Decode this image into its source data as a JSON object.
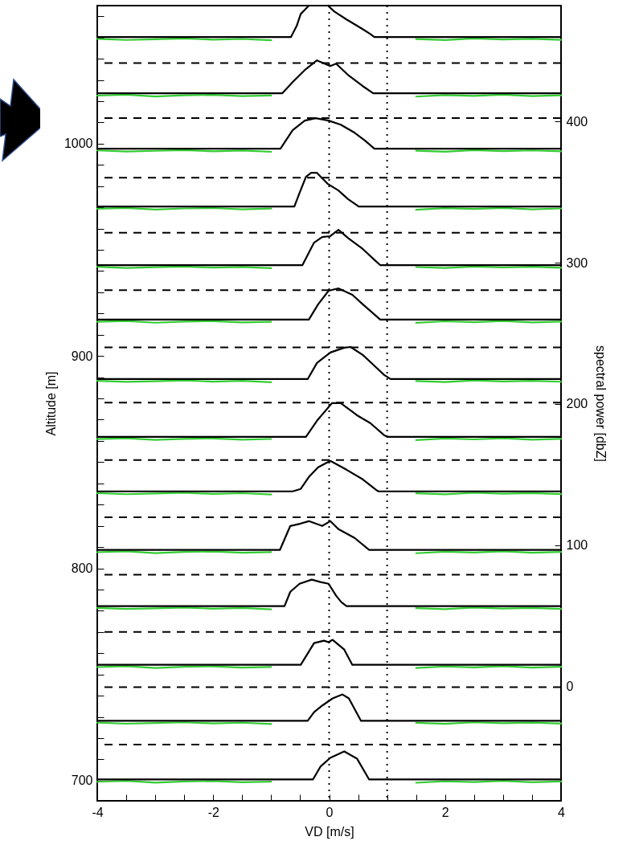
{
  "chart_data": {
    "type": "line",
    "xlabel": "VD [m/s]",
    "ylabel": "Altitude [m]",
    "y2label": "spectral power [dbZ]",
    "xlim": [
      -4,
      4
    ],
    "xticks": [
      -4,
      {
        "value": -3.5,
        "label": null
      },
      {
        "value": -3,
        "label": null
      },
      {
        "value": -2.5,
        "label": null
      },
      -2,
      {
        "value": -1.5,
        "label": null
      },
      {
        "value": -1,
        "label": null
      },
      {
        "value": -0.5,
        "label": null
      },
      0,
      {
        "value": 0.5,
        "label": null
      },
      {
        "value": 1,
        "label": null
      },
      {
        "value": 1.5,
        "label": null
      },
      2,
      {
        "value": 2.5,
        "label": null
      },
      {
        "value": 3,
        "label": null
      },
      {
        "value": 3.5,
        "label": null
      },
      4
    ],
    "ylim": [
      690.5,
      1065
    ],
    "yticks": [
      700,
      {
        "value": 710,
        "label": null
      },
      {
        "value": 720,
        "label": null
      },
      {
        "value": 730,
        "label": null
      },
      {
        "value": 740,
        "label": null
      },
      {
        "value": 750,
        "label": null
      },
      {
        "value": 760,
        "label": null
      },
      {
        "value": 770,
        "label": null
      },
      {
        "value": 780,
        "label": null
      },
      {
        "value": 790,
        "label": null
      },
      800,
      {
        "value": 810,
        "label": null
      },
      {
        "value": 820,
        "label": null
      },
      {
        "value": 830,
        "label": null
      },
      {
        "value": 840,
        "label": null
      },
      {
        "value": 850,
        "label": null
      },
      {
        "value": 860,
        "label": null
      },
      {
        "value": 870,
        "label": null
      },
      {
        "value": 880,
        "label": null
      },
      {
        "value": 890,
        "label": null
      },
      900,
      {
        "value": 910,
        "label": null
      },
      {
        "value": 920,
        "label": null
      },
      {
        "value": 930,
        "label": null
      },
      {
        "value": 940,
        "label": null
      },
      {
        "value": 950,
        "label": null
      },
      {
        "value": 960,
        "label": null
      },
      {
        "value": 970,
        "label": null
      },
      {
        "value": 980,
        "label": null
      },
      {
        "value": 990,
        "label": null
      },
      1000,
      {
        "value": 1010,
        "label": null
      },
      {
        "value": 1020,
        "label": null
      },
      {
        "value": 1030,
        "label": null
      },
      {
        "value": 1040,
        "label": null
      },
      {
        "value": 1050,
        "label": null
      },
      {
        "value": 1060,
        "label": null
      }
    ],
    "y2lim": [
      -81,
      482
    ],
    "y2ticks": [
      0,
      100,
      200,
      300,
      400
    ],
    "series": [
      {
        "color": "#33cc33",
        "axis": "y2",
        "x": [
          -4,
          -3.5,
          -3,
          -2.5,
          -2,
          -1.5,
          -1,
          0,
          1.5,
          2,
          2.5,
          3,
          3.5,
          4
        ],
        "values": [
          458.5,
          457.7,
          458.2,
          458.7,
          457.9,
          458.4,
          457.5,
          null,
          458.3,
          457.6,
          458.7,
          458,
          458.5,
          457.8
        ]
      },
      {
        "color": "#33cc33",
        "axis": "y2",
        "x": [
          -4,
          -3.5,
          -3,
          -2.5,
          -2,
          -1.5,
          -1,
          0,
          1.5,
          2,
          2.5,
          3,
          3.5,
          4
        ],
        "values": [
          418.3,
          418.9,
          417.7,
          418.5,
          418.8,
          417.9,
          418.4,
          null,
          417.6,
          418.7,
          418.1,
          418.9,
          417.9,
          418.5
        ]
      },
      {
        "color": "#33cc33",
        "axis": "y2",
        "x": [
          -4,
          -3.5,
          -3,
          -2.5,
          -2,
          -1.5,
          -1,
          0,
          1.5,
          2,
          2.5,
          3,
          3.5,
          4
        ],
        "values": [
          379.5,
          378.7,
          379.2,
          379.7,
          378.9,
          379.4,
          378.5,
          null,
          379.3,
          378.6,
          379.7,
          379,
          379.5,
          378.8
        ]
      },
      {
        "color": "#33cc33",
        "axis": "y2",
        "x": [
          -4,
          -3.5,
          -3,
          -2.5,
          -2,
          -1.5,
          -1,
          0,
          1.5,
          2,
          2.5,
          3,
          3.5,
          4
        ],
        "values": [
          338.2,
          338.8,
          337.6,
          338.4,
          338.7,
          337.8,
          338.3,
          null,
          337.5,
          338.6,
          338,
          338.8,
          337.8,
          338.4
        ]
      },
      {
        "color": "#33cc33",
        "axis": "y2",
        "x": [
          -4,
          -3.5,
          -3,
          -2.5,
          -2,
          -1.5,
          -1,
          0,
          1.5,
          2,
          2.5,
          3,
          3.5,
          4
        ],
        "values": [
          297.1,
          296.3,
          296.8,
          297.3,
          296.5,
          297,
          296.1,
          null,
          296.9,
          296.2,
          297.3,
          296.6,
          297.1,
          296.4
        ]
      },
      {
        "color": "#33cc33",
        "axis": "y2",
        "x": [
          -4,
          -3.5,
          -3,
          -2.5,
          -2,
          -1.5,
          -1,
          0,
          1.5,
          2,
          2.5,
          3,
          3.5,
          4
        ],
        "values": [
          258.1,
          258.7,
          257.5,
          258.3,
          258.6,
          257.7,
          258.2,
          null,
          257.4,
          258.5,
          257.9,
          258.7,
          257.7,
          258.3
        ]
      },
      {
        "color": "#33cc33",
        "axis": "y2",
        "x": [
          -4,
          -3.5,
          -3,
          -2.5,
          -2,
          -1.5,
          -1,
          0,
          1.5,
          2,
          2.5,
          3,
          3.5,
          4
        ],
        "values": [
          216.4,
          215.6,
          216.1,
          216.6,
          215.8,
          216.3,
          215.4,
          null,
          216.2,
          215.5,
          216.6,
          215.9,
          216.4,
          215.7
        ]
      },
      {
        "color": "#33cc33",
        "axis": "y2",
        "x": [
          -4,
          -3.5,
          -3,
          -2.5,
          -2,
          -1.5,
          -1,
          0,
          1.5,
          2,
          2.5,
          3,
          3.5,
          4
        ],
        "values": [
          175.1,
          175.7,
          174.5,
          175.3,
          175.6,
          174.7,
          175.2,
          null,
          174.4,
          175.5,
          174.9,
          175.7,
          174.7,
          175.3
        ]
      },
      {
        "color": "#33cc33",
        "axis": "y2",
        "x": [
          -4,
          -3.5,
          -3,
          -2.5,
          -2,
          -1.5,
          -1,
          0,
          1.5,
          2,
          2.5,
          3,
          3.5,
          4
        ],
        "values": [
          136.9,
          136.1,
          136.6,
          137.1,
          136.3,
          136.8,
          135.9,
          null,
          136.7,
          136,
          137.1,
          136.4,
          136.9,
          136.2
        ]
      },
      {
        "color": "#33cc33",
        "axis": "y2",
        "x": [
          -4,
          -3.5,
          -3,
          -2.5,
          -2,
          -1.5,
          -1,
          0,
          1.5,
          2,
          2.5,
          3,
          3.5,
          4
        ],
        "values": [
          95,
          95.6,
          94.4,
          95.2,
          95.5,
          94.6,
          95.1,
          null,
          94.3,
          95.4,
          94.8,
          95.6,
          94.6,
          95.2
        ]
      },
      {
        "color": "#33cc33",
        "axis": "y2",
        "x": [
          -4,
          -3.5,
          -3,
          -2.5,
          -2,
          -1.5,
          -1,
          0,
          1.5,
          2,
          2.5,
          3,
          3.5,
          4
        ],
        "values": [
          55.6,
          54.8,
          55.3,
          55.8,
          55,
          55.5,
          54.6,
          null,
          55.4,
          54.7,
          55.8,
          55.1,
          55.6,
          54.9
        ]
      },
      {
        "color": "#33cc33",
        "axis": "y2",
        "x": [
          -4,
          -3.5,
          -3,
          -2.5,
          -2,
          -1.5,
          -1,
          0,
          1.5,
          2,
          2.5,
          3,
          3.5,
          4
        ],
        "values": [
          13.7,
          14.3,
          13.1,
          13.9,
          14.2,
          13.3,
          13.8,
          null,
          13,
          14.1,
          13.5,
          14.3,
          13.3,
          13.9
        ]
      },
      {
        "color": "#33cc33",
        "axis": "y2",
        "x": [
          -4,
          -3.5,
          -3,
          -2.5,
          -2,
          -1.5,
          -1,
          0,
          1.5,
          2,
          2.5,
          3,
          3.5,
          4
        ],
        "values": [
          -25.6,
          -26.4,
          -25.9,
          -25.4,
          -26.2,
          -25.7,
          -26.6,
          null,
          -25.8,
          -26.5,
          -25.4,
          -26.1,
          -25.6,
          -26.3
        ]
      },
      {
        "color": "#33cc33",
        "axis": "y2",
        "x": [
          -4,
          -3.5,
          -3,
          -2.5,
          -2,
          -1.5,
          -1,
          0,
          1.5,
          2,
          2.5,
          3,
          3.5,
          4
        ],
        "values": [
          -67.5,
          -66.9,
          -68.1,
          -67.3,
          -67,
          -67.9,
          -67.4,
          null,
          -68.2,
          -67.1,
          -67.7,
          -66.9,
          -67.9,
          -67.3
        ]
      },
      {
        "color": "#000000",
        "axis": "y2",
        "x": [
          -4,
          -0.66,
          -0.56,
          -0.49,
          -0.42,
          -0.35,
          -0.2,
          -0.02,
          0.09,
          0.3,
          0.44,
          0.6,
          0.71,
          0.78,
          4
        ],
        "values": [
          459.7,
          459.7,
          467.6,
          476.1,
          479,
          482,
          null,
          482,
          477.8,
          472.2,
          468.8,
          464.8,
          461.9,
          459.7,
          459.7
        ]
      },
      {
        "color": "#000000",
        "axis": "y2",
        "x": [
          -4,
          -0.81,
          -0.63,
          -0.42,
          -0.21,
          0.02,
          0.12,
          0.34,
          0.58,
          0.76,
          4
        ],
        "values": [
          419.9,
          419.9,
          427.8,
          436.4,
          443.2,
          439.2,
          440.9,
          432.4,
          425,
          419.9,
          419.9
        ]
      },
      {
        "color": "#000000",
        "axis": "y2",
        "x": [
          -4,
          -0.84,
          -0.63,
          -0.42,
          -0.23,
          -0.01,
          0.2,
          0.44,
          0.62,
          0.78,
          4
        ],
        "values": [
          380.7,
          380.7,
          393.8,
          400.6,
          402.3,
          400.6,
          397.7,
          392,
          386.4,
          380.7,
          380.7
        ]
      },
      {
        "color": "#000000",
        "axis": "y2",
        "x": [
          -4,
          -0.6,
          -0.51,
          -0.4,
          -0.31,
          -0.21,
          -0.12,
          -0.02,
          0.16,
          0.33,
          0.51,
          4
        ],
        "values": [
          339.8,
          339.8,
          349.4,
          360.8,
          363.6,
          363.6,
          359.7,
          355.7,
          351.1,
          344.9,
          339.8,
          339.8
        ]
      },
      {
        "color": "#000000",
        "axis": "y2",
        "x": [
          -4,
          -0.46,
          -0.26,
          -0.12,
          0.02,
          0.16,
          0.34,
          0.58,
          0.76,
          0.88,
          4
        ],
        "values": [
          298.3,
          298.3,
          314.2,
          318.2,
          318.8,
          323.3,
          317,
          309.7,
          302.8,
          298.3,
          298.3
        ]
      },
      {
        "color": "#000000",
        "axis": "y2",
        "x": [
          -4,
          -0.35,
          -0.19,
          -0.01,
          0.16,
          0.4,
          0.58,
          0.74,
          0.88,
          4
        ],
        "values": [
          259.7,
          259.7,
          270.5,
          280.1,
          281.8,
          277.3,
          270.5,
          264.8,
          259.7,
          259.7
        ]
      },
      {
        "color": "#000000",
        "axis": "y2",
        "x": [
          -4,
          -0.37,
          -0.21,
          0.02,
          0.26,
          0.37,
          0.58,
          0.76,
          0.95,
          1.06,
          4
        ],
        "values": [
          217.6,
          217.6,
          229,
          236.4,
          239.8,
          240.3,
          234.7,
          227.8,
          220.5,
          217.6,
          217.6
        ]
      },
      {
        "color": "#000000",
        "axis": "y2",
        "x": [
          -4,
          -0.4,
          -0.21,
          0.05,
          0.2,
          0.48,
          0.71,
          0.95,
          1.02,
          4
        ],
        "values": [
          176.7,
          176.7,
          188.1,
          200.6,
          200.6,
          192,
          186.4,
          177.8,
          176.7,
          176.7
        ]
      },
      {
        "color": "#000000",
        "axis": "y2",
        "x": [
          -4,
          -0.63,
          -0.49,
          -0.35,
          -0.19,
          0.02,
          0.3,
          0.58,
          0.81,
          0.85,
          4
        ],
        "values": [
          138.1,
          138.1,
          139.8,
          148.3,
          155.1,
          159.7,
          153.4,
          146.6,
          139.2,
          138.1,
          138.1
        ]
      },
      {
        "color": "#000000",
        "axis": "y2",
        "x": [
          -4,
          -0.85,
          -0.67,
          -0.49,
          -0.35,
          -0.12,
          0.02,
          0.16,
          0.44,
          0.69,
          4
        ],
        "values": [
          96.6,
          96.6,
          113.6,
          115.3,
          117,
          113.6,
          117,
          111.4,
          105.1,
          96.6,
          96.6
        ]
      },
      {
        "color": "#000000",
        "axis": "y2",
        "x": [
          -4,
          -0.77,
          -0.67,
          -0.51,
          -0.3,
          -0.15,
          -0.01,
          0.12,
          0.21,
          0.3,
          4
        ],
        "values": [
          56.8,
          56.8,
          67,
          72.7,
          75.6,
          73.9,
          72.7,
          64.2,
          59.7,
          56.8,
          56.8
        ]
      },
      {
        "color": "#000000",
        "axis": "y2",
        "x": [
          -4,
          -0.49,
          -0.37,
          -0.26,
          -0.09,
          -0.01,
          0.06,
          0.26,
          0.4,
          4
        ],
        "values": [
          15.3,
          15.3,
          23.3,
          30.7,
          32.4,
          31.3,
          33,
          26.1,
          15.3,
          15.3
        ]
      },
      {
        "color": "#000000",
        "axis": "y2",
        "x": [
          -4,
          -0.37,
          -0.26,
          -0.12,
          0.06,
          0.23,
          0.34,
          0.55,
          4
        ],
        "values": [
          -24.4,
          -24.4,
          -18.2,
          -13.6,
          -8.5,
          -5.7,
          -8.5,
          -24.4,
          -24.4
        ]
      },
      {
        "color": "#000000",
        "axis": "y2",
        "x": [
          -4,
          -0.28,
          -0.15,
          0.02,
          0.26,
          0.48,
          0.69,
          4
        ],
        "values": [
          -65.9,
          -65.9,
          -56.8,
          -50.6,
          -46,
          -51.1,
          -65.9,
          -65.9
        ]
      }
    ],
    "ref_lines": [
      {
        "axis": "x",
        "value": 0,
        "color": "#000000",
        "line_style": "dotted"
      },
      {
        "axis": "x",
        "value": 1,
        "color": "#000000",
        "line_style": "dotted"
      },
      {
        "axis": "y",
        "value": 717,
        "color": "#000000",
        "line_style": "dashed"
      },
      {
        "axis": "y",
        "value": 744,
        "color": "#000000",
        "line_style": "dashed"
      },
      {
        "axis": "y",
        "value": 770,
        "color": "#000000",
        "line_style": "dashed"
      },
      {
        "axis": "y",
        "value": 797,
        "color": "#000000",
        "line_style": "dashed"
      },
      {
        "axis": "y",
        "value": 824,
        "color": "#000000",
        "line_style": "dashed"
      },
      {
        "axis": "y",
        "value": 851,
        "color": "#000000",
        "line_style": "dashed"
      },
      {
        "axis": "y",
        "value": 878,
        "color": "#000000",
        "line_style": "dashed"
      },
      {
        "axis": "y",
        "value": 904,
        "color": "#000000",
        "line_style": "dashed"
      },
      {
        "axis": "y",
        "value": 931,
        "color": "#000000",
        "line_style": "dashed"
      },
      {
        "axis": "y",
        "value": 958,
        "color": "#000000",
        "line_style": "dashed"
      },
      {
        "axis": "y",
        "value": 984,
        "color": "#000000",
        "line_style": "dashed"
      },
      {
        "axis": "y",
        "value": 1012,
        "color": "#000000",
        "line_style": "dashed"
      },
      {
        "axis": "y",
        "value": 1038,
        "color": "#000000",
        "line_style": "dashed"
      }
    ]
  }
}
